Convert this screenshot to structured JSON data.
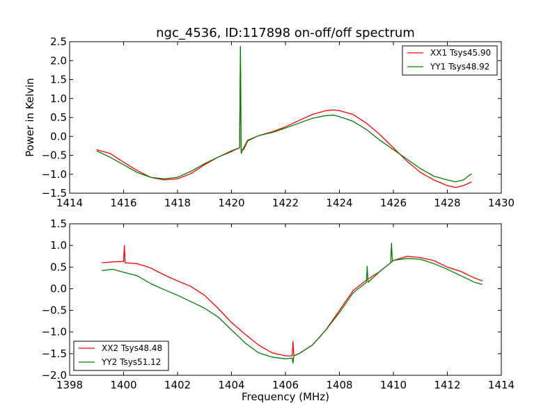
{
  "figure": {
    "title": "ngc_4536, ID:117898 on-off/off spectrum",
    "ylabel": "Power in Kelvin",
    "xlabel": "Frequency (MHz)"
  },
  "chart_data": [
    {
      "type": "line",
      "grid": false,
      "legend_position": "top-right",
      "xlim": [
        1414,
        1430
      ],
      "ylim": [
        -1.5,
        2.5
      ],
      "xticks": [
        "1414",
        "1416",
        "1418",
        "1420",
        "1422",
        "1424",
        "1426",
        "1428",
        "1430"
      ],
      "yticks": [
        "−1.5",
        "−1.0",
        "−0.5",
        "0.0",
        "0.5",
        "1.0",
        "1.5",
        "2.0",
        "2.5"
      ],
      "series": [
        {
          "name": "XX1 Tsys45.90",
          "color": "#ff0000",
          "x": [
            1415.0,
            1415.5,
            1416.0,
            1416.5,
            1417.0,
            1417.5,
            1418.0,
            1418.5,
            1419.0,
            1419.5,
            1420.0,
            1420.3,
            1420.33,
            1420.36,
            1420.45,
            1420.6,
            1421.0,
            1421.5,
            1422.0,
            1422.5,
            1423.0,
            1423.5,
            1423.8,
            1424.0,
            1424.5,
            1425.0,
            1425.5,
            1426.0,
            1426.5,
            1427.0,
            1427.5,
            1428.0,
            1428.3,
            1428.6,
            1428.9
          ],
          "y": [
            -0.35,
            -0.45,
            -0.68,
            -0.9,
            -1.08,
            -1.15,
            -1.12,
            -0.98,
            -0.75,
            -0.55,
            -0.38,
            -0.3,
            2.1,
            -0.35,
            -0.35,
            -0.12,
            0.02,
            0.12,
            0.25,
            0.42,
            0.58,
            0.68,
            0.7,
            0.68,
            0.58,
            0.35,
            0.05,
            -0.3,
            -0.65,
            -0.95,
            -1.15,
            -1.3,
            -1.35,
            -1.3,
            -1.2
          ]
        },
        {
          "name": "YY1 Tsys48.92",
          "color": "#008000",
          "x": [
            1415.0,
            1415.5,
            1416.0,
            1416.5,
            1417.0,
            1417.5,
            1418.0,
            1418.5,
            1419.0,
            1419.5,
            1420.0,
            1420.3,
            1420.33,
            1420.36,
            1420.45,
            1420.6,
            1421.0,
            1421.5,
            1422.0,
            1422.5,
            1423.0,
            1423.5,
            1423.8,
            1424.0,
            1424.5,
            1425.0,
            1425.5,
            1426.0,
            1426.5,
            1427.0,
            1427.5,
            1428.0,
            1428.3,
            1428.6,
            1428.9
          ],
          "y": [
            -0.38,
            -0.55,
            -0.75,
            -0.95,
            -1.08,
            -1.12,
            -1.08,
            -0.92,
            -0.72,
            -0.55,
            -0.4,
            -0.3,
            2.38,
            -0.45,
            -0.3,
            -0.1,
            0.02,
            0.1,
            0.22,
            0.35,
            0.48,
            0.55,
            0.56,
            0.52,
            0.4,
            0.18,
            -0.1,
            -0.35,
            -0.6,
            -0.85,
            -1.05,
            -1.15,
            -1.2,
            -1.15,
            -0.98
          ]
        }
      ]
    },
    {
      "type": "line",
      "grid": false,
      "legend_position": "bottom-left",
      "xlim": [
        1398,
        1414
      ],
      "ylim": [
        -2.0,
        1.5
      ],
      "xticks": [
        "1398",
        "1400",
        "1402",
        "1404",
        "1406",
        "1408",
        "1410",
        "1412",
        "1414"
      ],
      "yticks": [
        "−2.0",
        "−1.5",
        "−1.0",
        "−0.5",
        "0.0",
        "0.5",
        "1.0",
        "1.5"
      ],
      "xlabel": "Frequency (MHz)",
      "series": [
        {
          "name": "XX2 Tsys48.48",
          "color": "#ff0000",
          "x": [
            1399.2,
            1399.6,
            1400.0,
            1400.03,
            1400.06,
            1400.5,
            1401.0,
            1401.5,
            1402.0,
            1402.5,
            1403.0,
            1403.5,
            1404.0,
            1404.5,
            1405.0,
            1405.5,
            1406.0,
            1406.25,
            1406.28,
            1406.31,
            1406.5,
            1407.0,
            1407.5,
            1408.0,
            1408.5,
            1409.0,
            1409.5,
            1410.0,
            1410.5,
            1411.0,
            1411.5,
            1412.0,
            1412.5,
            1413.0,
            1413.3
          ],
          "y": [
            0.6,
            0.62,
            0.63,
            1.0,
            0.6,
            0.58,
            0.48,
            0.32,
            0.18,
            0.05,
            -0.15,
            -0.45,
            -0.78,
            -1.05,
            -1.3,
            -1.48,
            -1.55,
            -1.55,
            -1.22,
            -1.55,
            -1.5,
            -1.3,
            -0.95,
            -0.5,
            -0.05,
            0.2,
            0.4,
            0.65,
            0.75,
            0.72,
            0.65,
            0.5,
            0.4,
            0.25,
            0.18
          ]
        },
        {
          "name": "YY2 Tsys51.12",
          "color": "#008000",
          "x": [
            1399.2,
            1399.6,
            1400.0,
            1400.5,
            1401.0,
            1401.5,
            1402.0,
            1402.5,
            1403.0,
            1403.5,
            1404.0,
            1404.5,
            1405.0,
            1405.5,
            1406.0,
            1406.25,
            1406.28,
            1406.31,
            1406.5,
            1407.0,
            1407.5,
            1408.0,
            1408.5,
            1409.0,
            1409.03,
            1409.06,
            1409.5,
            1409.9,
            1409.93,
            1409.96,
            1410.5,
            1411.0,
            1411.5,
            1412.0,
            1412.5,
            1413.0,
            1413.3
          ],
          "y": [
            0.42,
            0.45,
            0.38,
            0.3,
            0.12,
            -0.02,
            -0.15,
            -0.3,
            -0.45,
            -0.65,
            -0.95,
            -1.25,
            -1.48,
            -1.58,
            -1.62,
            -1.6,
            -1.72,
            -1.55,
            -1.5,
            -1.3,
            -0.95,
            -0.55,
            -0.1,
            0.15,
            0.52,
            0.15,
            0.4,
            0.6,
            1.05,
            0.65,
            0.7,
            0.68,
            0.58,
            0.45,
            0.3,
            0.15,
            0.1
          ]
        }
      ]
    }
  ]
}
